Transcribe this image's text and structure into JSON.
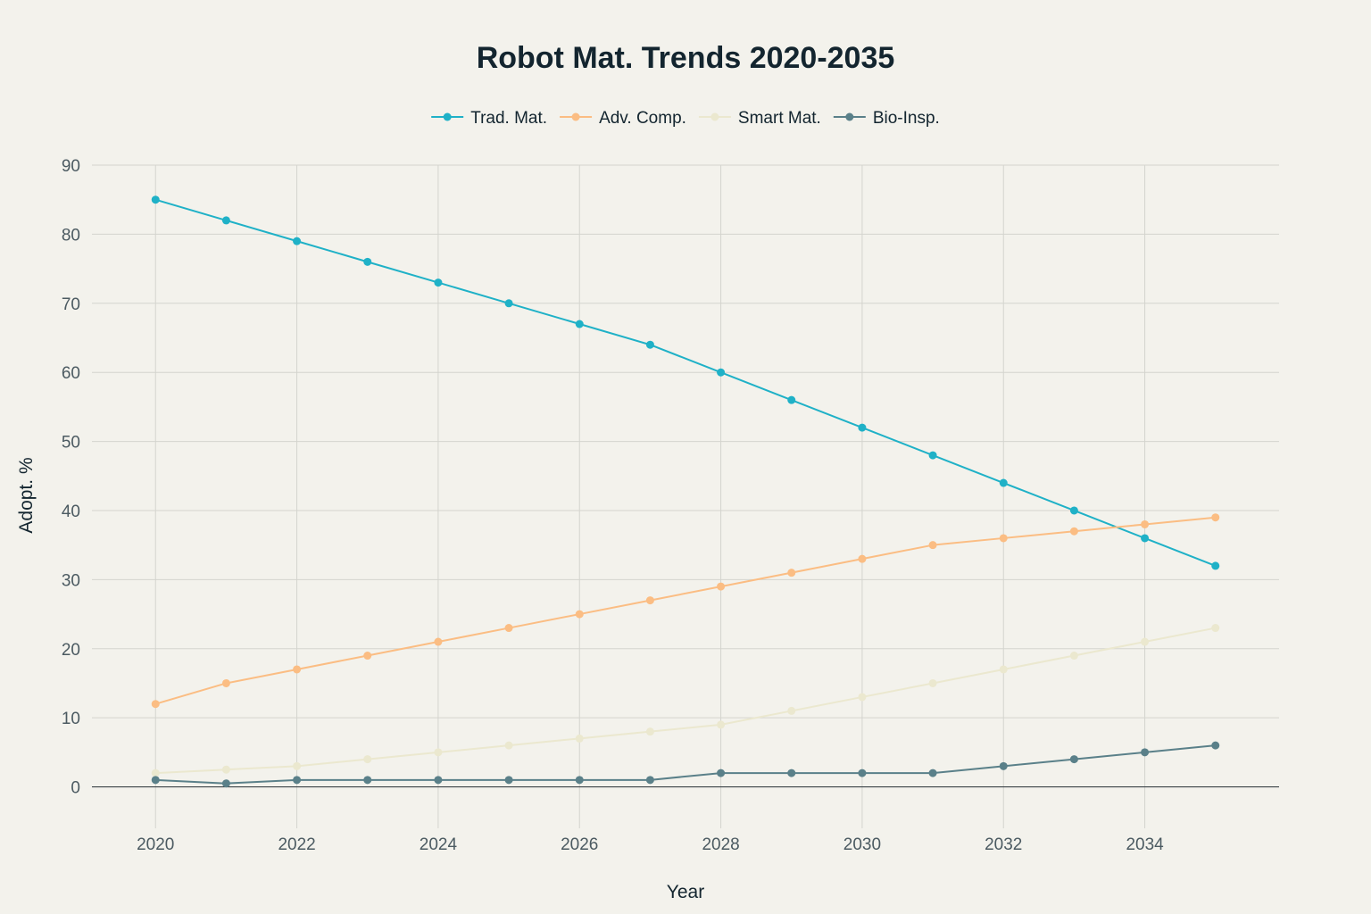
{
  "chart_data": {
    "type": "line",
    "title": "Robot Mat. Trends 2020-2035",
    "xlabel": "Year",
    "ylabel": "Adopt. %",
    "x": [
      2020,
      2021,
      2022,
      2023,
      2024,
      2025,
      2026,
      2027,
      2028,
      2029,
      2030,
      2031,
      2032,
      2033,
      2034,
      2035
    ],
    "xlim": [
      2019.1,
      2035.9
    ],
    "ylim": [
      -6,
      90
    ],
    "x_ticks": [
      2020,
      2022,
      2024,
      2026,
      2028,
      2030,
      2032,
      2034
    ],
    "y_ticks": [
      0,
      10,
      20,
      30,
      40,
      50,
      60,
      70,
      80,
      90
    ],
    "x_tick_labels": [
      "2020",
      "2022",
      "2024",
      "2026",
      "2028",
      "2030",
      "2032",
      "2034"
    ],
    "y_tick_labels": [
      "0",
      "10",
      "20",
      "30",
      "40",
      "50",
      "60",
      "70",
      "80",
      "90"
    ],
    "grid": true,
    "legend_position": "top-center",
    "series": [
      {
        "name": "Trad. Mat.",
        "color": "#1fb1c7",
        "values": [
          85,
          82,
          79,
          76,
          73,
          70,
          67,
          64,
          60,
          56,
          52,
          48,
          44,
          40,
          36,
          32
        ]
      },
      {
        "name": "Adv. Comp.",
        "color": "#fbbd83",
        "values": [
          12,
          15,
          17,
          19,
          21,
          23,
          25,
          27,
          29,
          31,
          33,
          35,
          36,
          37,
          38,
          39
        ]
      },
      {
        "name": "Smart Mat.",
        "color": "#ebe8cf",
        "values": [
          2,
          2.5,
          3,
          4,
          5,
          6,
          7,
          8,
          9,
          11,
          13,
          15,
          17,
          19,
          21,
          23
        ]
      },
      {
        "name": "Bio-Insp.",
        "color": "#5a8089",
        "values": [
          1,
          0.5,
          1,
          1,
          1,
          1,
          1,
          1,
          2,
          2,
          2,
          2,
          3,
          4,
          5,
          6
        ]
      }
    ]
  }
}
